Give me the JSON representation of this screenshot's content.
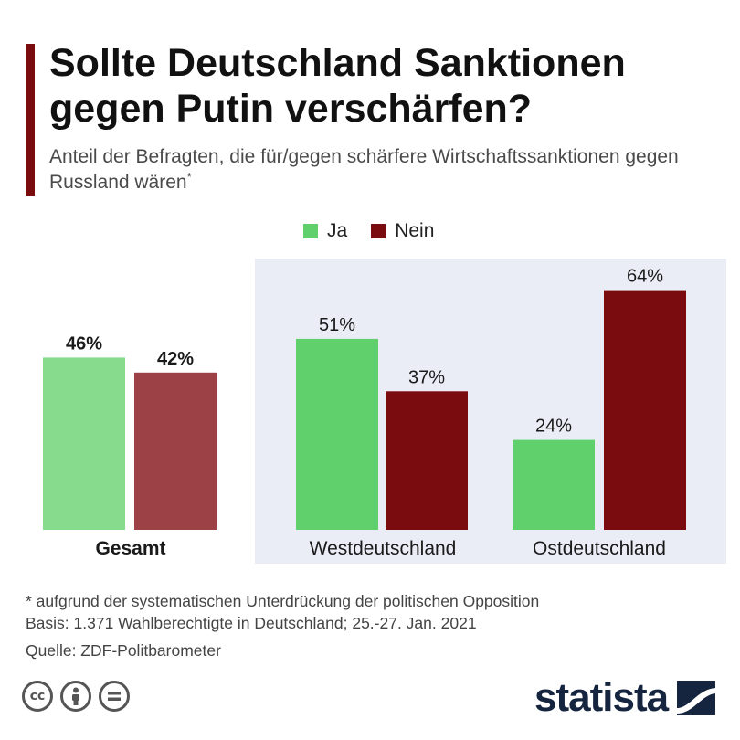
{
  "title": "Sollte Deutschland Sanktionen gegen Putin verschärfen?",
  "subtitle": "Anteil der Befragten, die für/gegen schärfere Wirtschaftssanktionen gegen Russland wären",
  "subtitle_marker": "*",
  "legend": [
    {
      "label": "Ja",
      "color": "#5fd06b"
    },
    {
      "label": "Nein",
      "color": "#7a0c10"
    }
  ],
  "chart_data": {
    "type": "bar",
    "categories": [
      "Gesamt",
      "Westdeutschland",
      "Ostdeutschland"
    ],
    "series": [
      {
        "name": "Ja",
        "values": [
          46,
          51,
          24
        ],
        "labels": [
          "46%",
          "51%",
          "24%"
        ]
      },
      {
        "name": "Nein",
        "values": [
          42,
          37,
          64
        ],
        "labels": [
          "42%",
          "37%",
          "64%"
        ]
      }
    ],
    "unit": "%",
    "ylim": [
      0,
      64
    ],
    "grid": false,
    "legend_position": "top-center",
    "highlight_colors": {
      "ja_muted": "#86dc8c",
      "nein_muted": "#9c4246"
    },
    "panel_color": "#eaedf6"
  },
  "footnote": "* aufgrund der systematischen Unterdrückung der politischen Opposition",
  "basis": "Basis: 1.371 Wahlberechtigte in Deutschland; 25.-27. Jan. 2021",
  "source": "Quelle: ZDF-Politbarometer",
  "license_icons": [
    "cc-icon",
    "attribution-icon",
    "no-derivatives-icon"
  ],
  "brand": "statista"
}
